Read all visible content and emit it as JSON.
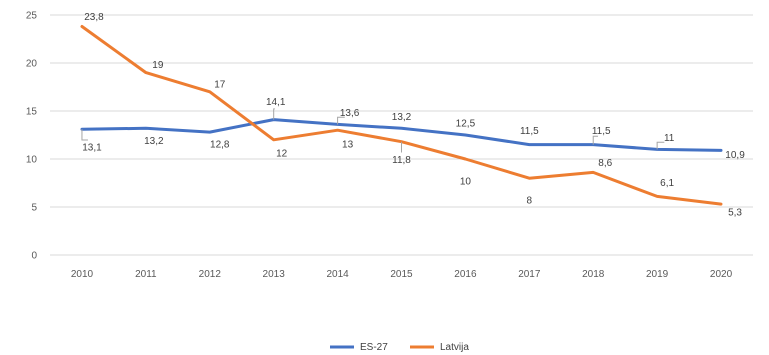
{
  "chart_data": {
    "type": "line",
    "title": "",
    "xlabel": "",
    "ylabel": "",
    "x": [
      "2010",
      "2011",
      "2012",
      "2013",
      "2014",
      "2015",
      "2016",
      "2017",
      "2018",
      "2019",
      "2020"
    ],
    "ylim": [
      0,
      25
    ],
    "yticks": [
      0,
      5,
      10,
      15,
      20,
      25
    ],
    "grid": true,
    "legend_position": "bottom",
    "series": [
      {
        "name": "ES-27",
        "color": "#4472C4",
        "values": [
          13.1,
          13.2,
          12.8,
          14.1,
          13.6,
          13.2,
          12.5,
          11.5,
          11.5,
          11,
          10.9
        ],
        "labels": [
          "13,1",
          "13,2",
          "12,8",
          "14,1",
          "13,6",
          "13,2",
          "12,5",
          "11,5",
          "11,5",
          "11",
          "10,9"
        ]
      },
      {
        "name": "Latvija",
        "color": "#ED7D31",
        "values": [
          23.8,
          19,
          17,
          12,
          13,
          11.8,
          10,
          8,
          8.6,
          6.1,
          5.3
        ],
        "labels": [
          "23,8",
          "19",
          "17",
          "12",
          "13",
          "11,8",
          "10",
          "8",
          "8,6",
          "6,1",
          "5,3"
        ]
      }
    ]
  }
}
